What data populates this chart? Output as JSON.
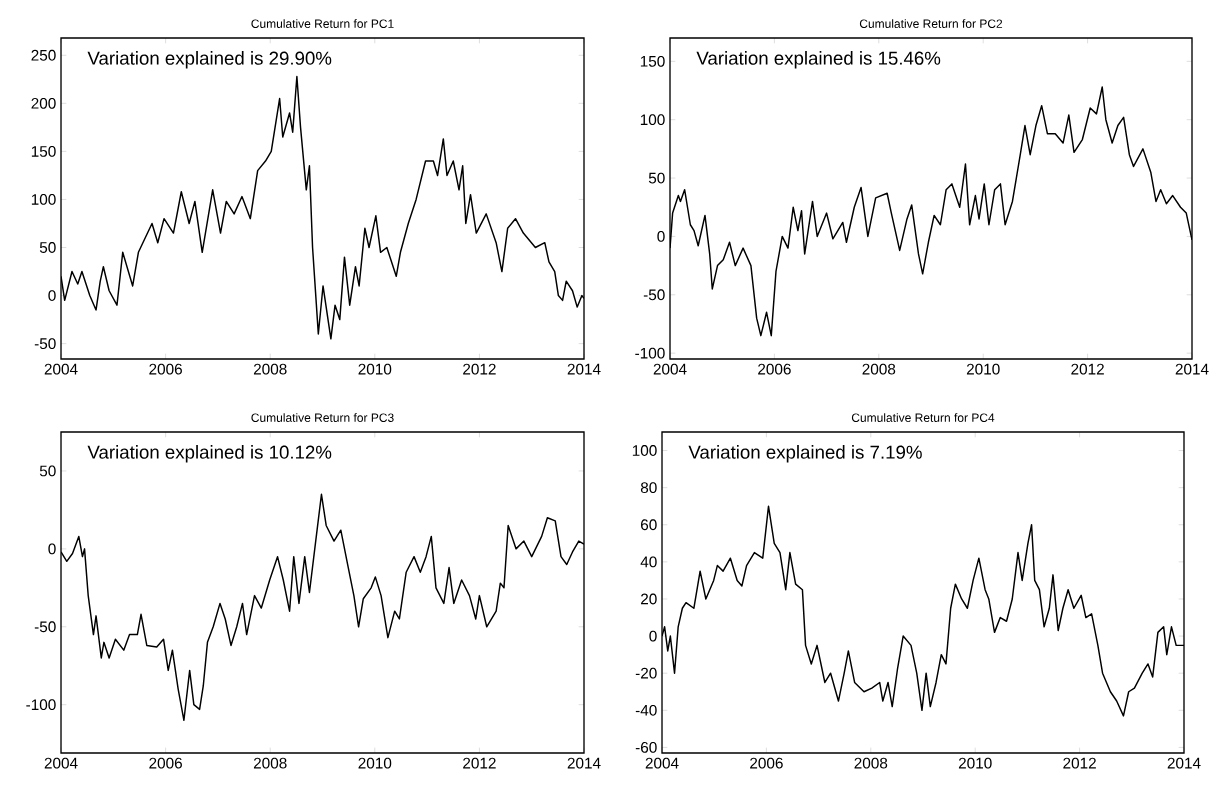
{
  "chart_data": [
    {
      "type": "line",
      "title": "Cumulative Return for PC1",
      "annotations": [
        "Variation explained is 29.90%"
      ],
      "xlim": [
        2004,
        2014
      ],
      "xticks": [
        2004,
        2006,
        2008,
        2010,
        2012,
        2014
      ],
      "ylim": [
        -66,
        268
      ],
      "yticks": [
        -50,
        0,
        50,
        100,
        150,
        200,
        250
      ],
      "x": [
        2004.0,
        2004.07,
        2004.21,
        2004.32,
        2004.4,
        2004.55,
        2004.67,
        2004.75,
        2004.81,
        2004.92,
        2005.07,
        2005.18,
        2005.37,
        2005.48,
        2005.74,
        2005.85,
        2005.97,
        2006.15,
        2006.3,
        2006.45,
        2006.56,
        2006.7,
        2006.9,
        2007.05,
        2007.16,
        2007.31,
        2007.46,
        2007.62,
        2007.76,
        2007.91,
        2008.02,
        2008.18,
        2008.24,
        2008.37,
        2008.43,
        2008.51,
        2008.58,
        2008.69,
        2008.75,
        2008.81,
        2008.92,
        2009.01,
        2009.16,
        2009.24,
        2009.33,
        2009.42,
        2009.52,
        2009.63,
        2009.7,
        2009.81,
        2009.89,
        2010.02,
        2010.11,
        2010.23,
        2010.41,
        2010.49,
        2010.64,
        2010.79,
        2010.97,
        2011.12,
        2011.2,
        2011.31,
        2011.38,
        2011.5,
        2011.61,
        2011.68,
        2011.74,
        2011.83,
        2011.94,
        2012.13,
        2012.32,
        2012.43,
        2012.54,
        2012.69,
        2012.84,
        2013.07,
        2013.25,
        2013.33,
        2013.44,
        2013.51,
        2013.59,
        2013.66,
        2013.78,
        2013.87,
        2013.96,
        2014.0
      ],
      "series": [
        {
          "color": "#000000",
          "values": [
            20,
            -5,
            25,
            12,
            25,
            0,
            -15,
            15,
            30,
            5,
            -10,
            45,
            10,
            45,
            75,
            55,
            80,
            65,
            108,
            75,
            98,
            45,
            110,
            65,
            98,
            85,
            103,
            80,
            130,
            140,
            150,
            205,
            165,
            190,
            170,
            228,
            175,
            110,
            135,
            50,
            -40,
            10,
            -45,
            -10,
            -25,
            40,
            -10,
            30,
            10,
            70,
            50,
            83,
            45,
            50,
            20,
            45,
            75,
            100,
            140,
            140,
            125,
            163,
            125,
            140,
            110,
            135,
            75,
            105,
            65,
            85,
            55,
            25,
            70,
            80,
            65,
            50,
            55,
            35,
            25,
            0,
            -5,
            15,
            5,
            -12,
            0,
            -3
          ]
        }
      ]
    },
    {
      "type": "line",
      "title": "Cumulative Return for PC2",
      "annotations": [
        "Variation explained is 15.46%"
      ],
      "xlim": [
        2004,
        2014
      ],
      "xticks": [
        2004,
        2006,
        2008,
        2010,
        2012,
        2014
      ],
      "ylim": [
        -105,
        170
      ],
      "yticks": [
        -100,
        -50,
        0,
        50,
        100,
        150
      ],
      "x": [
        2004.0,
        2004.05,
        2004.16,
        2004.2,
        2004.28,
        2004.39,
        2004.46,
        2004.54,
        2004.67,
        2004.76,
        2004.81,
        2004.91,
        2005.02,
        2005.14,
        2005.25,
        2005.4,
        2005.55,
        2005.66,
        2005.74,
        2005.85,
        2005.94,
        2006.03,
        2006.15,
        2006.26,
        2006.36,
        2006.45,
        2006.52,
        2006.58,
        2006.73,
        2006.82,
        2007.0,
        2007.12,
        2007.31,
        2007.38,
        2007.53,
        2007.66,
        2007.79,
        2007.94,
        2008.16,
        2008.24,
        2008.4,
        2008.54,
        2008.63,
        2008.76,
        2008.84,
        2008.95,
        2009.06,
        2009.18,
        2009.29,
        2009.4,
        2009.55,
        2009.66,
        2009.74,
        2009.85,
        2009.92,
        2010.02,
        2010.11,
        2010.22,
        2010.33,
        2010.42,
        2010.56,
        2010.71,
        2010.8,
        2010.9,
        2011.01,
        2011.12,
        2011.23,
        2011.38,
        2011.53,
        2011.64,
        2011.74,
        2011.9,
        2012.05,
        2012.17,
        2012.28,
        2012.35,
        2012.47,
        2012.58,
        2012.69,
        2012.8,
        2012.88,
        2013.06,
        2013.21,
        2013.31,
        2013.4,
        2013.51,
        2013.63,
        2013.78,
        2013.89,
        2014.0
      ],
      "series": [
        {
          "color": "#000000",
          "values": [
            -10,
            20,
            35,
            30,
            40,
            10,
            5,
            -8,
            18,
            -15,
            -45,
            -25,
            -20,
            -5,
            -25,
            -10,
            -25,
            -70,
            -85,
            -65,
            -85,
            -30,
            0,
            -10,
            25,
            5,
            22,
            -15,
            30,
            0,
            20,
            -2,
            12,
            -5,
            25,
            42,
            0,
            33,
            37,
            20,
            -12,
            15,
            27,
            -15,
            -32,
            -5,
            18,
            10,
            40,
            45,
            25,
            62,
            10,
            35,
            15,
            45,
            10,
            40,
            45,
            10,
            30,
            70,
            95,
            70,
            95,
            112,
            88,
            88,
            80,
            104,
            72,
            83,
            110,
            105,
            128,
            100,
            80,
            95,
            102,
            70,
            60,
            75,
            55,
            30,
            40,
            28,
            35,
            25,
            20,
            -3
          ]
        }
      ]
    },
    {
      "type": "line",
      "title": "Cumulative Return for PC3",
      "annotations": [
        "Variation explained is 10.12%"
      ],
      "xlim": [
        2004,
        2014
      ],
      "xticks": [
        2004,
        2006,
        2008,
        2010,
        2012,
        2014
      ],
      "ylim": [
        -131,
        75
      ],
      "yticks": [
        -100,
        -50,
        0,
        50
      ],
      "x": [
        2004.0,
        2004.11,
        2004.22,
        2004.34,
        2004.41,
        2004.45,
        2004.52,
        2004.62,
        2004.67,
        2004.77,
        2004.82,
        2004.92,
        2005.04,
        2005.2,
        2005.31,
        2005.46,
        2005.53,
        2005.64,
        2005.83,
        2005.96,
        2006.05,
        2006.13,
        2006.24,
        2006.35,
        2006.46,
        2006.54,
        2006.65,
        2006.72,
        2006.8,
        2006.91,
        2007.04,
        2007.14,
        2007.25,
        2007.36,
        2007.47,
        2007.55,
        2007.7,
        2007.83,
        2007.99,
        2008.14,
        2008.25,
        2008.37,
        2008.45,
        2008.55,
        2008.66,
        2008.75,
        2008.87,
        2008.98,
        2009.07,
        2009.22,
        2009.35,
        2009.48,
        2009.6,
        2009.69,
        2009.78,
        2009.93,
        2010.01,
        2010.12,
        2010.25,
        2010.38,
        2010.47,
        2010.6,
        2010.75,
        2010.87,
        2010.98,
        2011.08,
        2011.17,
        2011.32,
        2011.42,
        2011.51,
        2011.66,
        2011.81,
        2011.93,
        2012.0,
        2012.14,
        2012.32,
        2012.4,
        2012.47,
        2012.55,
        2012.7,
        2012.85,
        2013.0,
        2013.19,
        2013.3,
        2013.45,
        2013.56,
        2013.67,
        2013.78,
        2013.9,
        2014.0
      ],
      "series": [
        {
          "color": "#000000",
          "values": [
            -2,
            -8,
            -3,
            8,
            -5,
            0,
            -30,
            -55,
            -43,
            -70,
            -60,
            -70,
            -58,
            -65,
            -55,
            -55,
            -42,
            -62,
            -63,
            -58,
            -78,
            -65,
            -90,
            -110,
            -78,
            -100,
            -103,
            -88,
            -60,
            -50,
            -35,
            -45,
            -62,
            -50,
            -35,
            -55,
            -30,
            -38,
            -20,
            -5,
            -20,
            -40,
            -5,
            -35,
            -5,
            -28,
            5,
            35,
            15,
            5,
            12,
            -10,
            -30,
            -50,
            -32,
            -25,
            -18,
            -30,
            -57,
            -40,
            -45,
            -15,
            -5,
            -15,
            -5,
            8,
            -25,
            -35,
            -12,
            -35,
            -20,
            -30,
            -45,
            -30,
            -50,
            -40,
            -22,
            -25,
            15,
            0,
            5,
            -5,
            8,
            20,
            18,
            -5,
            -10,
            -2,
            5,
            3
          ]
        }
      ]
    },
    {
      "type": "line",
      "title": "Cumulative Return for PC4",
      "annotations": [
        "Variation explained is 7.19%"
      ],
      "xlim": [
        2004,
        2014
      ],
      "xticks": [
        2004,
        2006,
        2008,
        2010,
        2012,
        2014
      ],
      "ylim": [
        -63,
        110
      ],
      "yticks": [
        -60,
        -40,
        -20,
        0,
        20,
        40,
        60,
        80,
        100
      ],
      "x": [
        2004.0,
        2004.05,
        2004.11,
        2004.16,
        2004.24,
        2004.31,
        2004.39,
        2004.46,
        2004.61,
        2004.73,
        2004.84,
        2004.99,
        2005.06,
        2005.17,
        2005.31,
        2005.44,
        2005.53,
        2005.62,
        2005.77,
        2005.93,
        2006.04,
        2006.15,
        2006.26,
        2006.37,
        2006.45,
        2006.56,
        2006.69,
        2006.75,
        2006.86,
        2006.97,
        2007.12,
        2007.23,
        2007.38,
        2007.49,
        2007.57,
        2007.69,
        2007.87,
        2008.02,
        2008.17,
        2008.23,
        2008.33,
        2008.41,
        2008.51,
        2008.62,
        2008.77,
        2008.88,
        2008.98,
        2009.06,
        2009.14,
        2009.25,
        2009.35,
        2009.44,
        2009.53,
        2009.62,
        2009.74,
        2009.85,
        2009.96,
        2010.07,
        2010.19,
        2010.26,
        2010.37,
        2010.48,
        2010.6,
        2010.71,
        2010.82,
        2010.9,
        2011.01,
        2011.08,
        2011.14,
        2011.23,
        2011.32,
        2011.42,
        2011.49,
        2011.59,
        2011.68,
        2011.78,
        2011.89,
        2012.03,
        2012.12,
        2012.23,
        2012.35,
        2012.44,
        2012.59,
        2012.71,
        2012.84,
        2012.94,
        2013.05,
        2013.2,
        2013.31,
        2013.4,
        2013.5,
        2013.61,
        2013.67,
        2013.76,
        2013.85,
        2014.0
      ],
      "series": [
        {
          "color": "#000000",
          "values": [
            0,
            5,
            -8,
            0,
            -20,
            5,
            15,
            18,
            15,
            35,
            20,
            30,
            38,
            35,
            42,
            30,
            27,
            38,
            45,
            42,
            70,
            50,
            45,
            25,
            45,
            28,
            25,
            -5,
            -15,
            -5,
            -25,
            -20,
            -35,
            -20,
            -8,
            -25,
            -30,
            -28,
            -25,
            -35,
            -25,
            -38,
            -18,
            0,
            -5,
            -20,
            -40,
            -20,
            -38,
            -25,
            -10,
            -15,
            15,
            28,
            20,
            15,
            30,
            42,
            25,
            20,
            2,
            10,
            8,
            20,
            45,
            30,
            50,
            60,
            30,
            25,
            5,
            15,
            33,
            3,
            15,
            25,
            15,
            22,
            10,
            12,
            -5,
            -20,
            -30,
            -35,
            -43,
            -30,
            -28,
            -20,
            -15,
            -22,
            2,
            5,
            -10,
            5,
            -5,
            -5
          ]
        }
      ]
    }
  ]
}
